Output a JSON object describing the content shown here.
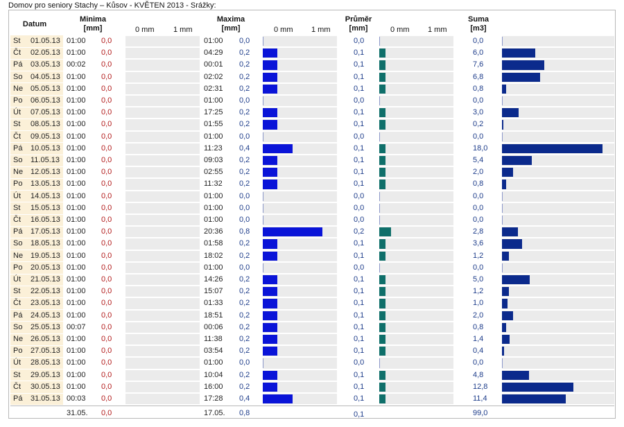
{
  "title": "Domov pro seniory Stachy – Kůsov - KVĚTEN 2013 - Srážky:",
  "headers": {
    "datum": "Datum",
    "minima": "Minima",
    "maxima": "Maxima",
    "prumer": "Průměr",
    "suma": "Suma",
    "unit_mm": "[mm]",
    "unit_m3": "[m3]",
    "tick0": "0 mm",
    "tick1": "1 mm"
  },
  "colors": {
    "max_bar": "#0a14d8",
    "avg_bar": "#0f6f6a",
    "sum_bar": "#0b2a8c",
    "date_bg": "#fbf0d8",
    "bar_bg": "#ebebeb",
    "min_value": "#b21a1a",
    "value": "#1d3c8a"
  },
  "rows": [
    {
      "day": "St",
      "date": "01.05.13",
      "min_time": "01:00",
      "min": "0,0",
      "max_time": "01:00",
      "max": "0,0",
      "avg": "0,0",
      "sum": "0,0"
    },
    {
      "day": "Čt",
      "date": "02.05.13",
      "min_time": "01:00",
      "min": "0,0",
      "max_time": "04:29",
      "max": "0,2",
      "avg": "0,1",
      "sum": "6,0"
    },
    {
      "day": "Pá",
      "date": "03.05.13",
      "min_time": "00:02",
      "min": "0,0",
      "max_time": "00:01",
      "max": "0,2",
      "avg": "0,1",
      "sum": "7,6"
    },
    {
      "day": "So",
      "date": "04.05.13",
      "min_time": "01:00",
      "min": "0,0",
      "max_time": "02:02",
      "max": "0,2",
      "avg": "0,1",
      "sum": "6,8"
    },
    {
      "day": "Ne",
      "date": "05.05.13",
      "min_time": "01:00",
      "min": "0,0",
      "max_time": "02:31",
      "max": "0,2",
      "avg": "0,1",
      "sum": "0,8"
    },
    {
      "day": "Po",
      "date": "06.05.13",
      "min_time": "01:00",
      "min": "0,0",
      "max_time": "01:00",
      "max": "0,0",
      "avg": "0,0",
      "sum": "0,0"
    },
    {
      "day": "Út",
      "date": "07.05.13",
      "min_time": "01:00",
      "min": "0,0",
      "max_time": "17:25",
      "max": "0,2",
      "avg": "0,1",
      "sum": "3,0"
    },
    {
      "day": "St",
      "date": "08.05.13",
      "min_time": "01:00",
      "min": "0,0",
      "max_time": "01:55",
      "max": "0,2",
      "avg": "0,1",
      "sum": "0,2"
    },
    {
      "day": "Čt",
      "date": "09.05.13",
      "min_time": "01:00",
      "min": "0,0",
      "max_time": "01:00",
      "max": "0,0",
      "avg": "0,0",
      "sum": "0,0"
    },
    {
      "day": "Pá",
      "date": "10.05.13",
      "min_time": "01:00",
      "min": "0,0",
      "max_time": "11:23",
      "max": "0,4",
      "avg": "0,1",
      "sum": "18,0"
    },
    {
      "day": "So",
      "date": "11.05.13",
      "min_time": "01:00",
      "min": "0,0",
      "max_time": "09:03",
      "max": "0,2",
      "avg": "0,1",
      "sum": "5,4"
    },
    {
      "day": "Ne",
      "date": "12.05.13",
      "min_time": "01:00",
      "min": "0,0",
      "max_time": "02:55",
      "max": "0,2",
      "avg": "0,1",
      "sum": "2,0"
    },
    {
      "day": "Po",
      "date": "13.05.13",
      "min_time": "01:00",
      "min": "0,0",
      "max_time": "11:32",
      "max": "0,2",
      "avg": "0,1",
      "sum": "0,8"
    },
    {
      "day": "Út",
      "date": "14.05.13",
      "min_time": "01:00",
      "min": "0,0",
      "max_time": "01:00",
      "max": "0,0",
      "avg": "0,0",
      "sum": "0,0"
    },
    {
      "day": "St",
      "date": "15.05.13",
      "min_time": "01:00",
      "min": "0,0",
      "max_time": "01:00",
      "max": "0,0",
      "avg": "0,0",
      "sum": "0,0"
    },
    {
      "day": "Čt",
      "date": "16.05.13",
      "min_time": "01:00",
      "min": "0,0",
      "max_time": "01:00",
      "max": "0,0",
      "avg": "0,0",
      "sum": "0,0"
    },
    {
      "day": "Pá",
      "date": "17.05.13",
      "min_time": "01:00",
      "min": "0,0",
      "max_time": "20:36",
      "max": "0,8",
      "avg": "0,2",
      "sum": "2,8"
    },
    {
      "day": "So",
      "date": "18.05.13",
      "min_time": "01:00",
      "min": "0,0",
      "max_time": "01:58",
      "max": "0,2",
      "avg": "0,1",
      "sum": "3,6"
    },
    {
      "day": "Ne",
      "date": "19.05.13",
      "min_time": "01:00",
      "min": "0,0",
      "max_time": "18:02",
      "max": "0,2",
      "avg": "0,1",
      "sum": "1,2"
    },
    {
      "day": "Po",
      "date": "20.05.13",
      "min_time": "01:00",
      "min": "0,0",
      "max_time": "01:00",
      "max": "0,0",
      "avg": "0,0",
      "sum": "0,0"
    },
    {
      "day": "Út",
      "date": "21.05.13",
      "min_time": "01:00",
      "min": "0,0",
      "max_time": "14:26",
      "max": "0,2",
      "avg": "0,1",
      "sum": "5,0"
    },
    {
      "day": "St",
      "date": "22.05.13",
      "min_time": "01:00",
      "min": "0,0",
      "max_time": "15:07",
      "max": "0,2",
      "avg": "0,1",
      "sum": "1,2"
    },
    {
      "day": "Čt",
      "date": "23.05.13",
      "min_time": "01:00",
      "min": "0,0",
      "max_time": "01:33",
      "max": "0,2",
      "avg": "0,1",
      "sum": "1,0"
    },
    {
      "day": "Pá",
      "date": "24.05.13",
      "min_time": "01:00",
      "min": "0,0",
      "max_time": "18:51",
      "max": "0,2",
      "avg": "0,1",
      "sum": "2,0"
    },
    {
      "day": "So",
      "date": "25.05.13",
      "min_time": "00:07",
      "min": "0,0",
      "max_time": "00:06",
      "max": "0,2",
      "avg": "0,1",
      "sum": "0,8"
    },
    {
      "day": "Ne",
      "date": "26.05.13",
      "min_time": "01:00",
      "min": "0,0",
      "max_time": "11:38",
      "max": "0,2",
      "avg": "0,1",
      "sum": "1,4"
    },
    {
      "day": "Po",
      "date": "27.05.13",
      "min_time": "01:00",
      "min": "0,0",
      "max_time": "03:54",
      "max": "0,2",
      "avg": "0,1",
      "sum": "0,4"
    },
    {
      "day": "Út",
      "date": "28.05.13",
      "min_time": "01:00",
      "min": "0,0",
      "max_time": "01:00",
      "max": "0,0",
      "avg": "0,0",
      "sum": "0,0"
    },
    {
      "day": "St",
      "date": "29.05.13",
      "min_time": "01:00",
      "min": "0,0",
      "max_time": "10:04",
      "max": "0,2",
      "avg": "0,1",
      "sum": "4,8"
    },
    {
      "day": "Čt",
      "date": "30.05.13",
      "min_time": "01:00",
      "min": "0,0",
      "max_time": "16:00",
      "max": "0,2",
      "avg": "0,1",
      "sum": "12,8"
    },
    {
      "day": "Pá",
      "date": "31.05.13",
      "min_time": "00:03",
      "min": "0,0",
      "max_time": "17:28",
      "max": "0,4",
      "avg": "0,1",
      "sum": "11,4"
    }
  ],
  "footer": {
    "min_date": "31.05.",
    "min": "0,0",
    "max_date": "17.05.",
    "max": "0,8",
    "avg": "0,1",
    "sum": "99,0"
  }
}
